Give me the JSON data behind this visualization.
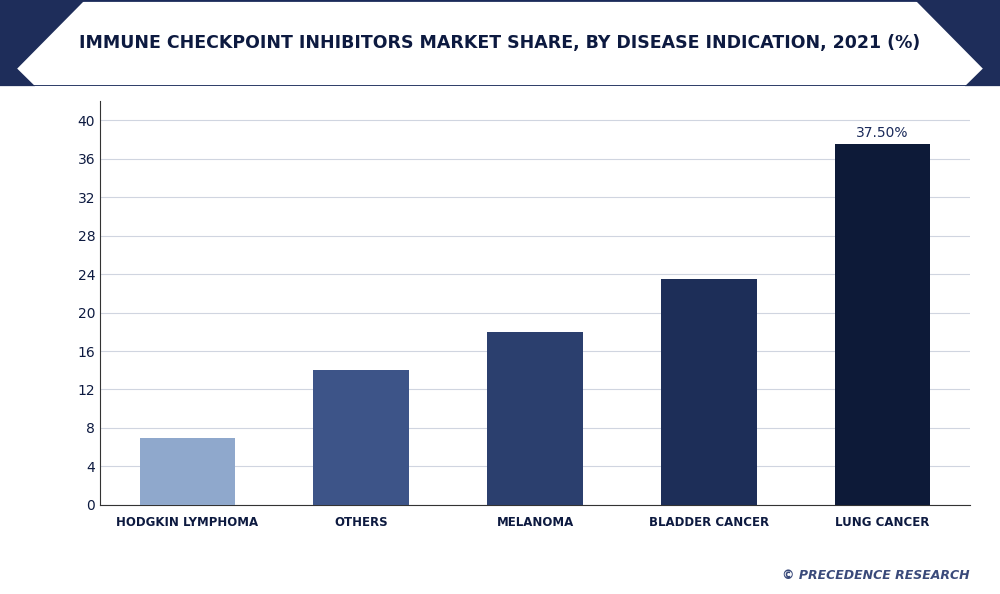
{
  "title": "IMMUNE CHECKPOINT INHIBITORS MARKET SHARE, BY DISEASE INDICATION, 2021 (%)",
  "categories": [
    "HODGKIN LYMPHOMA",
    "OTHERS",
    "MELANOMA",
    "BLADDER CANCER",
    "LUNG CANCER"
  ],
  "values": [
    7.0,
    14.0,
    18.0,
    23.5,
    37.5
  ],
  "bar_colors": [
    "#8fa8cc",
    "#3d5488",
    "#2b3f6e",
    "#1d2e58",
    "#0d1a38"
  ],
  "annotation_bar": 4,
  "annotation_text": "37.50%",
  "annotation_color": "#1a2a5a",
  "ylim": [
    0,
    42
  ],
  "yticks": [
    0,
    4,
    8,
    12,
    16,
    20,
    24,
    28,
    32,
    36,
    40
  ],
  "background_color": "#ffffff",
  "plot_bg_color": "#ffffff",
  "title_color": "#0d1a40",
  "title_bg_color": "#f0f2f7",
  "title_border_color": "#1a2a5a",
  "tick_label_color": "#0d1a40",
  "axis_color": "#333333",
  "grid_color": "#d0d5e0",
  "corner_triangle_color": "#1e2d5a",
  "watermark": "© PRECEDENCE RESEARCH",
  "watermark_color": "#3a4a7a",
  "outer_bg_color": "#ffffff"
}
